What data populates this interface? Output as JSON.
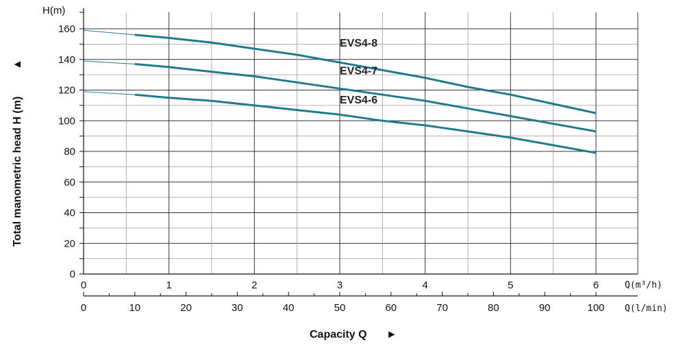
{
  "chart_data": {
    "type": "line",
    "ylabel": "Total manometric head H (m)",
    "ylabel_arrow": "▲",
    "xlabel": "Capacity Q",
    "xlabel_arrow": "►",
    "y_unit_label": "H(m)",
    "x_unit_label_primary": "Q(m³/h)",
    "x_unit_label_secondary": "Q(l/min)",
    "ylim": [
      0,
      160
    ],
    "yticks": [
      0,
      20,
      40,
      60,
      80,
      100,
      120,
      140,
      160
    ],
    "xlim": [
      0,
      6.5
    ],
    "xticks_primary": [
      0,
      1,
      2,
      3,
      4,
      5,
      6
    ],
    "xlim_secondary": [
      0,
      108.3
    ],
    "xticks_secondary": [
      0,
      10,
      20,
      30,
      40,
      50,
      60,
      70,
      80,
      90,
      100
    ],
    "grid": true,
    "line_color": "#1f7a8c",
    "series": [
      {
        "name": "EVS4-8",
        "x": [
          0,
          0.6,
          1,
          1.5,
          2,
          2.5,
          3,
          3.5,
          4,
          4.5,
          5,
          5.5,
          6
        ],
        "y": [
          159,
          156,
          154,
          151,
          147,
          143,
          138,
          133,
          128,
          122,
          117,
          111,
          105
        ]
      },
      {
        "name": "EVS4-7",
        "x": [
          0,
          0.6,
          1,
          1.5,
          2,
          2.5,
          3,
          3.5,
          4,
          4.5,
          5,
          5.5,
          6
        ],
        "y": [
          139,
          137,
          135,
          132,
          129,
          125,
          121,
          117,
          113,
          108,
          103,
          98,
          93
        ]
      },
      {
        "name": "EVS4-6",
        "x": [
          0,
          0.6,
          1,
          1.5,
          2,
          2.5,
          3,
          3.5,
          4,
          4.5,
          5,
          5.5,
          6
        ],
        "y": [
          119,
          117,
          115,
          113,
          110,
          107,
          104,
          100,
          97,
          93,
          89,
          84,
          79
        ]
      }
    ]
  }
}
